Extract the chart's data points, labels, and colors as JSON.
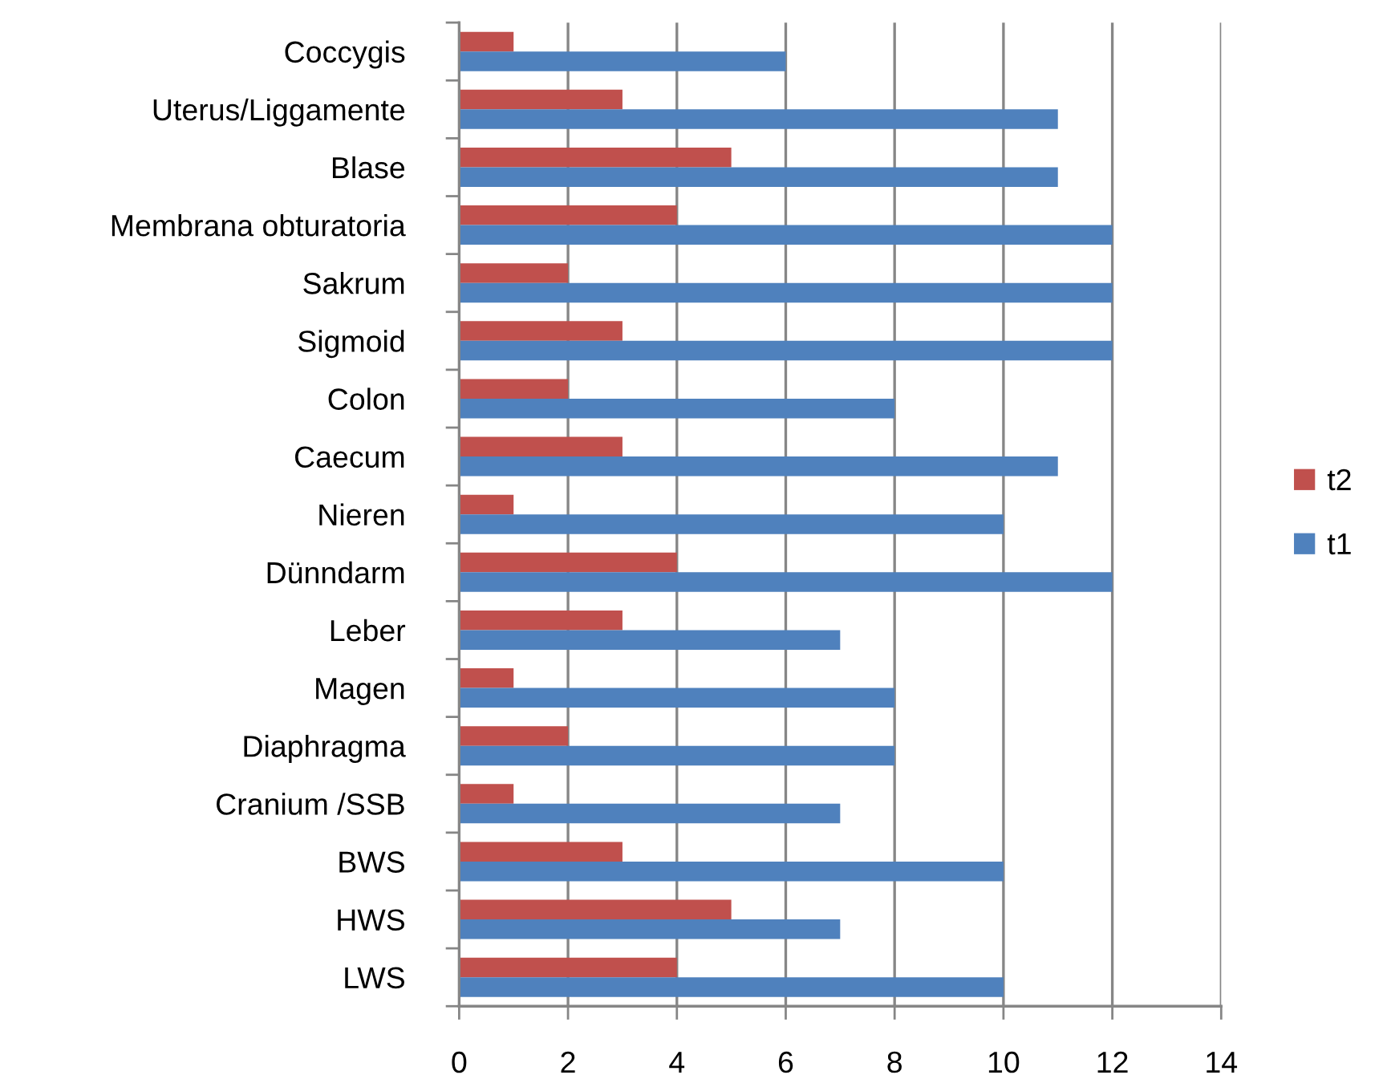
{
  "chart_data": {
    "type": "bar",
    "orientation": "horizontal",
    "categories": [
      "Coccygis",
      "Uterus/Liggamente",
      "Blase",
      "Membrana obturatoria",
      "Sakrum",
      "Sigmoid",
      "Colon",
      "Caecum",
      "Nieren",
      "Dünndarm",
      "Leber",
      "Magen",
      "Diaphragma",
      "Cranium /SSB",
      "BWS",
      "HWS",
      "LWS"
    ],
    "series": [
      {
        "name": "t2",
        "color": "#c0504d",
        "values": [
          1,
          3,
          5,
          4,
          2,
          3,
          2,
          3,
          1,
          4,
          3,
          1,
          2,
          1,
          3,
          5,
          4
        ]
      },
      {
        "name": "t1",
        "color": "#4f81bd",
        "values": [
          6,
          11,
          11,
          12,
          12,
          12,
          8,
          11,
          10,
          12,
          7,
          8,
          8,
          7,
          10,
          7,
          10
        ]
      }
    ],
    "xlim": [
      0,
      14
    ],
    "xticks": [
      0,
      2,
      4,
      6,
      8,
      10,
      12,
      14
    ],
    "grid": "x",
    "legend": "right"
  }
}
